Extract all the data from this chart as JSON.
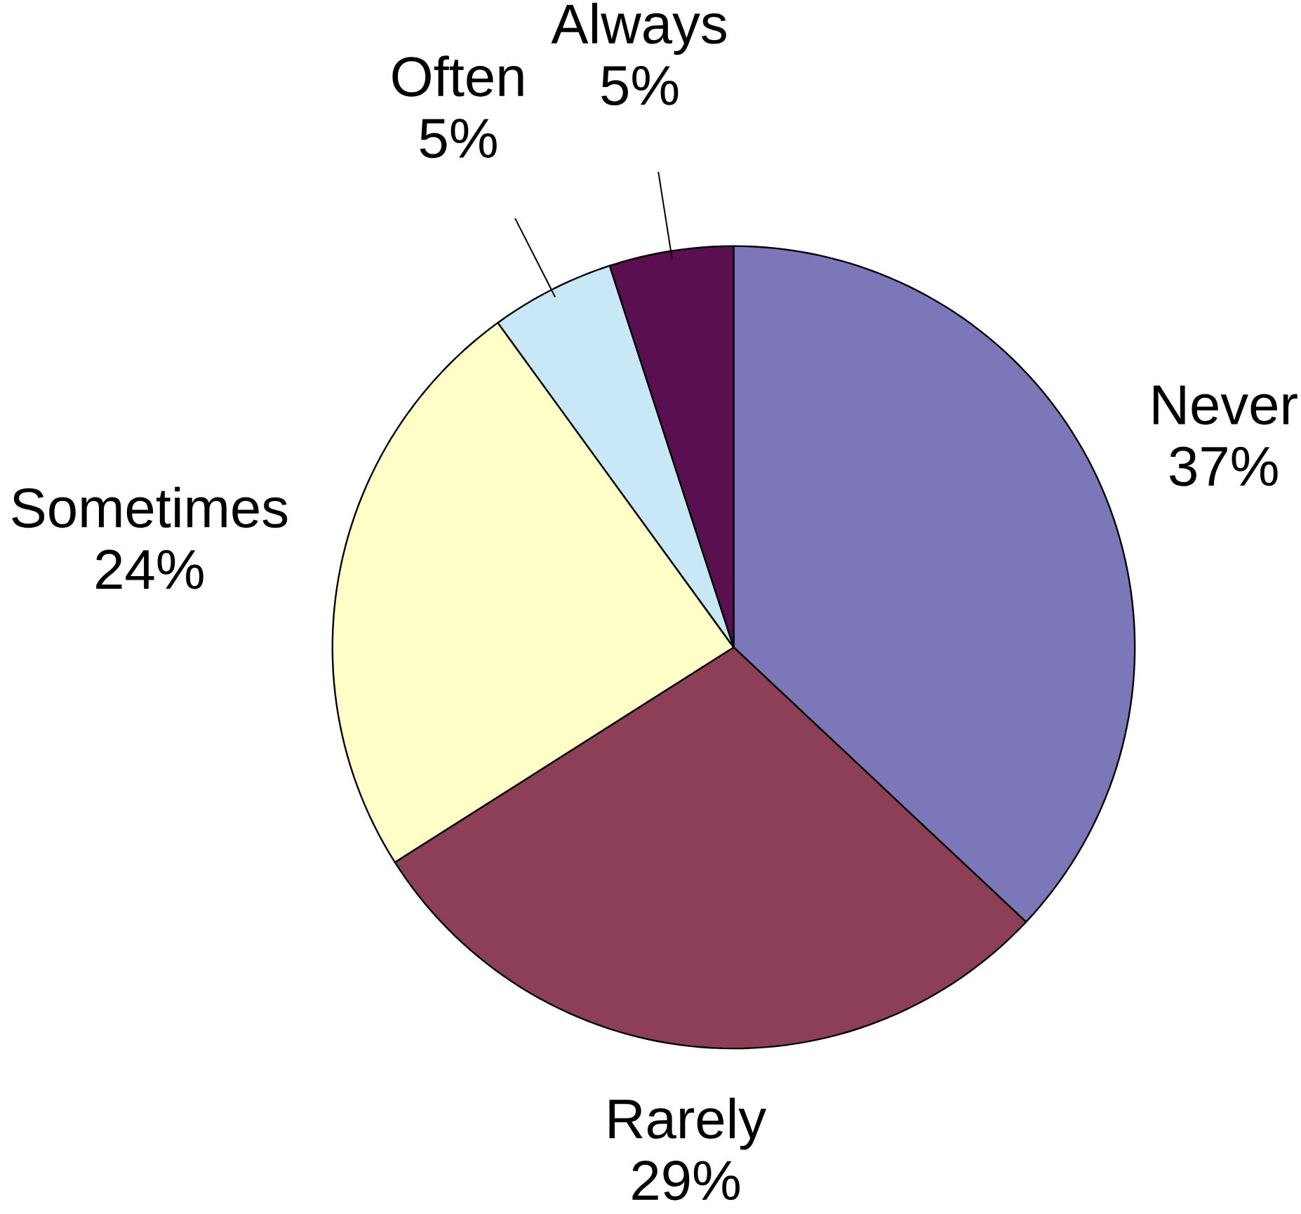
{
  "chart_data": {
    "type": "pie",
    "categories": [
      "Never",
      "Rarely",
      "Sometimes",
      "Often",
      "Always"
    ],
    "values": [
      37,
      29,
      24,
      5,
      5
    ],
    "value_labels": [
      "37%",
      "29%",
      "24%",
      "5%",
      "5%"
    ],
    "colors": [
      "#7b77b8",
      "#8e3f58",
      "#ffffc8",
      "#c8e8f8",
      "#5a1050"
    ]
  }
}
